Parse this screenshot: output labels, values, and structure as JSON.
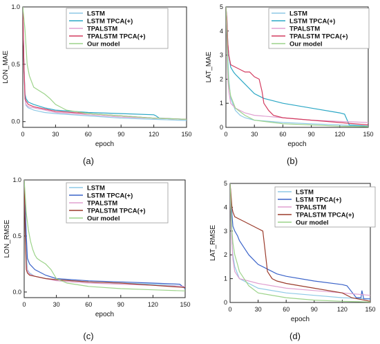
{
  "chart_data": [
    {
      "panel": "(a)",
      "type": "line",
      "xlabel": "epoch",
      "ylabel": "LON_MAE",
      "xlim": [
        0,
        150
      ],
      "ylim": [
        -0.05,
        1.0
      ],
      "xticks": [
        "0",
        "30",
        "60",
        "90",
        "120",
        "150"
      ],
      "yticks": [
        "0.0",
        "0.5",
        "1.0"
      ],
      "ytick_values": [
        0.0,
        0.5,
        1.0
      ],
      "legend_position": "top-right",
      "series": [
        {
          "name": "LSTM",
          "color": "#8ec9e6",
          "x": [
            0,
            1,
            2,
            3,
            5,
            8,
            10,
            15,
            20,
            30,
            60,
            90,
            120,
            150
          ],
          "y": [
            1.0,
            0.5,
            0.2,
            0.14,
            0.12,
            0.11,
            0.1,
            0.09,
            0.08,
            0.07,
            0.05,
            0.03,
            0.02,
            0.01
          ]
        },
        {
          "name": "LSTM TPCA(+)",
          "color": "#2aa7c5",
          "x": [
            0,
            1,
            2,
            3,
            5,
            10,
            20,
            30,
            60,
            90,
            120,
            122,
            125,
            150
          ],
          "y": [
            1.0,
            0.5,
            0.24,
            0.2,
            0.17,
            0.15,
            0.12,
            0.1,
            0.08,
            0.07,
            0.06,
            0.05,
            0.03,
            0.02
          ]
        },
        {
          "name": "TPALSTM",
          "color": "#e0a0d0",
          "x": [
            0,
            1,
            2,
            3,
            5,
            10,
            20,
            30,
            60,
            90,
            120,
            150
          ],
          "y": [
            1.0,
            0.5,
            0.2,
            0.15,
            0.13,
            0.12,
            0.1,
            0.08,
            0.06,
            0.04,
            0.03,
            0.02
          ]
        },
        {
          "name": "TPALSTM TPCA(+)",
          "color": "#d33b5f",
          "x": [
            0,
            1,
            2,
            3,
            5,
            10,
            20,
            30,
            60,
            90,
            120,
            150
          ],
          "y": [
            1.0,
            0.5,
            0.2,
            0.18,
            0.15,
            0.13,
            0.11,
            0.09,
            0.07,
            0.05,
            0.03,
            0.02
          ]
        },
        {
          "name": "Our model",
          "color": "#9cd38a",
          "x": [
            0,
            2,
            4,
            6,
            8,
            10,
            15,
            20,
            25,
            30,
            40,
            60,
            90,
            120,
            150
          ],
          "y": [
            1.0,
            0.8,
            0.5,
            0.4,
            0.35,
            0.3,
            0.27,
            0.24,
            0.2,
            0.15,
            0.1,
            0.07,
            0.05,
            0.03,
            0.02
          ]
        }
      ]
    },
    {
      "panel": "(b)",
      "type": "line",
      "xlabel": "epoch",
      "ylabel": "LAT_MAE",
      "xlim": [
        0,
        150
      ],
      "ylim": [
        0,
        5
      ],
      "xticks": [
        "0",
        "30",
        "60",
        "90",
        "120",
        "150"
      ],
      "yticks": [
        "0",
        "1",
        "2",
        "3",
        "4",
        "5"
      ],
      "ytick_values": [
        0,
        1,
        2,
        3,
        4,
        5
      ],
      "legend_position": "top-right",
      "series": [
        {
          "name": "LSTM",
          "color": "#8ec9e6",
          "x": [
            0,
            1,
            2,
            3,
            5,
            8,
            10,
            15,
            20,
            30,
            60,
            90,
            120,
            150
          ],
          "y": [
            5.0,
            4.0,
            3.0,
            2.0,
            1.2,
            0.9,
            0.7,
            0.5,
            0.4,
            0.3,
            0.2,
            0.15,
            0.1,
            0.05
          ]
        },
        {
          "name": "LSTM TPCA(+)",
          "color": "#2aa7c5",
          "x": [
            0,
            1,
            2,
            3,
            5,
            8,
            10,
            15,
            20,
            25,
            30,
            35,
            40,
            50,
            60,
            90,
            120,
            125,
            130,
            150
          ],
          "y": [
            5.0,
            4.5,
            3.5,
            3.0,
            2.5,
            2.3,
            2.2,
            2.0,
            1.8,
            1.6,
            1.4,
            1.3,
            1.2,
            1.1,
            1.0,
            0.8,
            0.6,
            0.55,
            0.1,
            0.05
          ]
        },
        {
          "name": "TPALSTM",
          "color": "#e0a0d0",
          "x": [
            0,
            1,
            2,
            3,
            5,
            10,
            20,
            30,
            60,
            90,
            120,
            150
          ],
          "y": [
            5.0,
            3.5,
            2.0,
            1.5,
            1.0,
            0.8,
            0.6,
            0.5,
            0.4,
            0.3,
            0.25,
            0.2
          ]
        },
        {
          "name": "TPALSTM TPCA(+)",
          "color": "#d33b5f",
          "x": [
            0,
            1,
            2,
            3,
            5,
            10,
            15,
            20,
            25,
            30,
            35,
            38,
            40,
            45,
            50,
            60,
            90,
            120,
            150
          ],
          "y": [
            5.0,
            4.5,
            3.5,
            3.0,
            2.6,
            2.5,
            2.4,
            2.3,
            2.3,
            2.1,
            2.0,
            1.5,
            1.0,
            0.7,
            0.5,
            0.4,
            0.3,
            0.2,
            0.1
          ]
        },
        {
          "name": "Our model",
          "color": "#9cd38a",
          "x": [
            0,
            1,
            2,
            3,
            5,
            8,
            10,
            20,
            30,
            60,
            90,
            120,
            150
          ],
          "y": [
            5.0,
            4.0,
            2.5,
            1.8,
            1.3,
            1.0,
            0.8,
            0.5,
            0.3,
            0.15,
            0.1,
            0.05,
            0.03
          ]
        }
      ]
    },
    {
      "panel": "(c)",
      "type": "line",
      "xlabel": "epoch",
      "ylabel": "LON_RMSE",
      "xlim": [
        0,
        150
      ],
      "ylim": [
        -0.05,
        1.0
      ],
      "xticks": [
        "0",
        "30",
        "60",
        "90",
        "120",
        "150"
      ],
      "yticks": [
        "0.0",
        "0.5",
        "1.0"
      ],
      "ytick_values": [
        0.0,
        0.5,
        1.0
      ],
      "legend_position": "top-right",
      "series": [
        {
          "name": "LSTM",
          "color": "#8ec9e6",
          "x": [
            0,
            1,
            2,
            3,
            5,
            10,
            20,
            30,
            60,
            90,
            120,
            150
          ],
          "y": [
            1.0,
            0.6,
            0.35,
            0.2,
            0.17,
            0.14,
            0.12,
            0.11,
            0.09,
            0.08,
            0.07,
            0.05
          ]
        },
        {
          "name": "LSTM TPCA(+)",
          "color": "#3a63c9",
          "x": [
            0,
            2,
            3,
            5,
            10,
            20,
            30,
            60,
            90,
            120,
            145,
            150
          ],
          "y": [
            1.0,
            0.5,
            0.3,
            0.25,
            0.2,
            0.15,
            0.12,
            0.1,
            0.09,
            0.08,
            0.07,
            0.03
          ]
        },
        {
          "name": "TPALSTM",
          "color": "#e0a0d0",
          "x": [
            0,
            1,
            2,
            3,
            5,
            10,
            20,
            30,
            60,
            90,
            120,
            150
          ],
          "y": [
            1.0,
            0.5,
            0.25,
            0.19,
            0.16,
            0.14,
            0.12,
            0.1,
            0.08,
            0.07,
            0.06,
            0.05
          ]
        },
        {
          "name": "TPALSTM TPCA(+)",
          "color": "#9b3b2b",
          "x": [
            0,
            1,
            2,
            3,
            5,
            10,
            20,
            30,
            60,
            90,
            120,
            150
          ],
          "y": [
            1.0,
            0.5,
            0.2,
            0.17,
            0.15,
            0.14,
            0.12,
            0.11,
            0.09,
            0.08,
            0.06,
            0.04
          ]
        },
        {
          "name": "Our model",
          "color": "#9cd38a",
          "x": [
            0,
            2,
            4,
            6,
            8,
            10,
            12,
            15,
            20,
            25,
            30,
            40,
            60,
            90,
            120,
            150
          ],
          "y": [
            1.0,
            0.7,
            0.55,
            0.45,
            0.38,
            0.33,
            0.3,
            0.28,
            0.25,
            0.2,
            0.12,
            0.08,
            0.05,
            0.03,
            0.02,
            0.01
          ]
        }
      ]
    },
    {
      "panel": "(d)",
      "type": "line",
      "xlabel": "epoch",
      "ylabel": "LAT_RMSE",
      "xlim": [
        0,
        150
      ],
      "ylim": [
        0,
        5
      ],
      "xticks": [
        "0",
        "30",
        "60",
        "90",
        "120",
        "150"
      ],
      "yticks": [
        "0",
        "1",
        "2",
        "3",
        "4",
        "5"
      ],
      "ytick_values": [
        0,
        1,
        2,
        3,
        4,
        5
      ],
      "legend_position": "top-right",
      "series": [
        {
          "name": "LSTM",
          "color": "#8ec9e6",
          "x": [
            0,
            1,
            2,
            3,
            5,
            10,
            20,
            30,
            60,
            90,
            120,
            150
          ],
          "y": [
            5.0,
            3.5,
            2.5,
            2.0,
            1.5,
            1.0,
            0.8,
            0.6,
            0.4,
            0.3,
            0.2,
            0.15
          ]
        },
        {
          "name": "LSTM TPCA(+)",
          "color": "#3a63c9",
          "x": [
            0,
            2,
            3,
            5,
            8,
            10,
            15,
            20,
            25,
            30,
            40,
            50,
            60,
            90,
            120,
            125,
            135,
            140,
            141,
            143,
            150
          ],
          "y": [
            5.0,
            3.7,
            3.2,
            3.0,
            2.8,
            2.6,
            2.3,
            2.0,
            1.8,
            1.6,
            1.4,
            1.2,
            1.1,
            0.9,
            0.75,
            0.7,
            0.2,
            0.2,
            0.5,
            0.15,
            0.15
          ]
        },
        {
          "name": "TPALSTM",
          "color": "#e0a0d0",
          "x": [
            0,
            1,
            2,
            3,
            5,
            10,
            20,
            30,
            60,
            90,
            120,
            150
          ],
          "y": [
            5.0,
            3.5,
            2.5,
            1.8,
            1.3,
            1.0,
            0.9,
            0.8,
            0.6,
            0.5,
            0.4,
            0.3
          ]
        },
        {
          "name": "TPALSTM TPCA(+)",
          "color": "#9b3b2b",
          "x": [
            0,
            1,
            2,
            3,
            5,
            10,
            15,
            20,
            25,
            30,
            35,
            38,
            40,
            45,
            50,
            60,
            90,
            120,
            130,
            150
          ],
          "y": [
            5.0,
            4.5,
            4.0,
            3.8,
            3.6,
            3.5,
            3.4,
            3.3,
            3.2,
            3.1,
            3.0,
            2.0,
            1.3,
            1.0,
            0.9,
            0.8,
            0.6,
            0.4,
            0.2,
            0.05
          ]
        },
        {
          "name": "Our model",
          "color": "#9cd38a",
          "x": [
            0,
            1,
            2,
            3,
            5,
            8,
            10,
            15,
            20,
            30,
            60,
            90,
            120,
            150
          ],
          "y": [
            5.0,
            4.0,
            3.0,
            2.5,
            2.0,
            1.6,
            1.3,
            1.0,
            0.7,
            0.4,
            0.2,
            0.1,
            0.05,
            0.02
          ]
        }
      ]
    }
  ]
}
